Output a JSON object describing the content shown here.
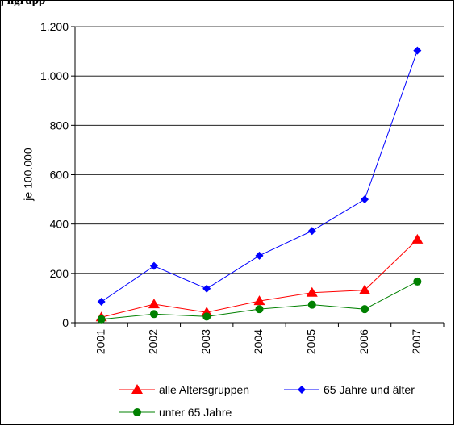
{
  "title_fragment": "j                         ngrupp",
  "chart_data": {
    "type": "line",
    "title": "",
    "xlabel": "",
    "ylabel": "je 100.000",
    "categories": [
      "2001",
      "2002",
      "2003",
      "2004",
      "2005",
      "2006",
      "2007"
    ],
    "ylim": [
      0,
      1200
    ],
    "yticks": [
      0,
      200,
      400,
      600,
      800,
      1000,
      1200
    ],
    "ytick_labels": [
      "0",
      "200",
      "400",
      "600",
      "800",
      "1.000",
      "1.200"
    ],
    "grid": true,
    "legend_position": "bottom",
    "series": [
      {
        "name": "alle Altersgruppen",
        "color": "#ff0000",
        "marker": "triangle",
        "values": [
          22,
          75,
          42,
          88,
          122,
          132,
          337
        ]
      },
      {
        "name": "65 Jahre und älter",
        "color": "#0000ff",
        "marker": "diamond",
        "values": [
          85,
          230,
          138,
          272,
          372,
          500,
          1103
        ]
      },
      {
        "name": "unter 65 Jahre",
        "color": "#008000",
        "marker": "circle",
        "values": [
          14,
          35,
          25,
          55,
          73,
          55,
          167
        ]
      }
    ]
  }
}
